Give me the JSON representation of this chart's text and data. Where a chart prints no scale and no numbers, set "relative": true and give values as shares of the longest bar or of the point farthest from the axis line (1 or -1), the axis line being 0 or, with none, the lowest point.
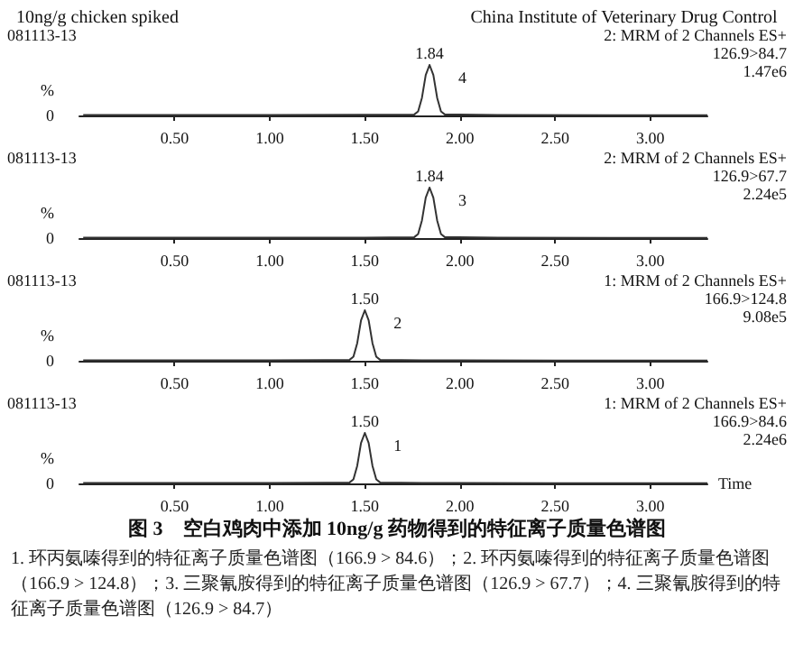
{
  "chart_data": [
    {
      "type": "line",
      "relative": true,
      "title": "10ng/g chicken spiked",
      "subtitle": "China Institute of Veterinary Drug Control",
      "ylabel": "%",
      "xlim": [
        0,
        3.3
      ],
      "xticks": [
        {
          "value": 0.5,
          "label": "0.50"
        },
        {
          "value": 1,
          "label": "1.00"
        },
        {
          "value": 1.5,
          "label": "1.50"
        },
        {
          "value": 2,
          "label": "2.00"
        },
        {
          "value": 2.5,
          "label": "2.50"
        },
        {
          "value": 3,
          "label": "3.00"
        }
      ],
      "series": [
        {
          "color": "#333333",
          "x": [
            0.02,
            0.5,
            1.0,
            1.5,
            1.76,
            1.78,
            1.8,
            1.82,
            1.84,
            1.86,
            1.88,
            1.9,
            1.92,
            2.2,
            2.8,
            3.3
          ],
          "values": [
            0.01,
            0.01,
            0.01,
            0.015,
            0.02,
            0.08,
            0.35,
            0.8,
            1,
            0.8,
            0.35,
            0.08,
            0.02,
            0.01,
            0.005,
            0.005
          ]
        }
      ],
      "annotations": [
        "081113-13",
        "2: MRM of 2 Channels ES+",
        "126.9>84.7",
        "1.47e6",
        "0",
        "1.84",
        "4"
      ]
    },
    {
      "type": "line",
      "relative": true,
      "ylabel": "%",
      "xlim": [
        0,
        3.3
      ],
      "xticks": [
        {
          "value": 0.5,
          "label": "0.50"
        },
        {
          "value": 1,
          "label": "1.00"
        },
        {
          "value": 1.5,
          "label": "1.50"
        },
        {
          "value": 2,
          "label": "2.00"
        },
        {
          "value": 2.5,
          "label": "2.50"
        },
        {
          "value": 3,
          "label": "3.00"
        }
      ],
      "series": [
        {
          "color": "#333333",
          "x": [
            0.02,
            0.5,
            1.0,
            1.5,
            1.76,
            1.78,
            1.8,
            1.82,
            1.84,
            1.86,
            1.88,
            1.9,
            1.92,
            2.2,
            2.8,
            3.3
          ],
          "values": [
            0.01,
            0.01,
            0.01,
            0.01,
            0.02,
            0.08,
            0.35,
            0.8,
            1,
            0.8,
            0.35,
            0.08,
            0.02,
            0.01,
            0.005,
            0.005
          ]
        }
      ],
      "annotations": [
        "081113-13",
        "2: MRM of 2 Channels ES+",
        "126.9>67.7",
        "2.24e5",
        "0",
        "1.84",
        "3"
      ]
    },
    {
      "type": "line",
      "relative": true,
      "ylabel": "%",
      "xlim": [
        0,
        3.3
      ],
      "xticks": [
        {
          "value": 0.5,
          "label": "0.50"
        },
        {
          "value": 1,
          "label": "1.00"
        },
        {
          "value": 1.5,
          "label": "1.50"
        },
        {
          "value": 2,
          "label": "2.00"
        },
        {
          "value": 2.5,
          "label": "2.50"
        },
        {
          "value": 3,
          "label": "3.00"
        }
      ],
      "series": [
        {
          "color": "#333333",
          "x": [
            0.02,
            0.5,
            1.0,
            1.3,
            1.42,
            1.44,
            1.46,
            1.48,
            1.5,
            1.52,
            1.54,
            1.56,
            1.58,
            1.8,
            2.5,
            3.3
          ],
          "values": [
            0.01,
            0.01,
            0.01,
            0.015,
            0.02,
            0.08,
            0.35,
            0.8,
            1,
            0.8,
            0.35,
            0.08,
            0.02,
            0.01,
            0.005,
            0.005
          ]
        }
      ],
      "annotations": [
        "081113-13",
        "1: MRM of 2 Channels ES+",
        "166.9>124.8",
        "9.08e5",
        "0",
        "1.50",
        "2"
      ]
    },
    {
      "type": "line",
      "relative": true,
      "ylabel": "%",
      "xlabel": "Time",
      "xlim": [
        0,
        3.3
      ],
      "xticks": [
        {
          "value": 0.5,
          "label": "0.50"
        },
        {
          "value": 1,
          "label": "1.00"
        },
        {
          "value": 1.5,
          "label": "1.50"
        },
        {
          "value": 2,
          "label": "2.00"
        },
        {
          "value": 2.5,
          "label": "2.50"
        },
        {
          "value": 3,
          "label": "3.00"
        }
      ],
      "series": [
        {
          "color": "#333333",
          "x": [
            0.02,
            0.5,
            1.0,
            1.3,
            1.42,
            1.44,
            1.46,
            1.48,
            1.5,
            1.52,
            1.54,
            1.56,
            1.58,
            1.8,
            2.5,
            3.3
          ],
          "values": [
            0.01,
            0.01,
            0.01,
            0.015,
            0.02,
            0.08,
            0.35,
            0.8,
            1,
            0.8,
            0.35,
            0.08,
            0.02,
            0.01,
            0.005,
            0.005
          ]
        }
      ],
      "annotations": [
        "081113-13",
        "1: MRM of 2 Channels ES+",
        "166.9>84.6",
        "2.24e6",
        "0",
        "1.50",
        "1",
        "图 3　空白鸡肉中添加 10ng/g 药物得到的特征离子质量色谱图",
        "1. 环丙氨嗪得到的特征离子质量色谱图（166.9 > 84.6）；2. 环丙氨嗪得到的特征离子质量色谱图（166.9 > 124.8）；3. 三聚氰胺得到的特征离子质量色谱图（126.9 > 67.7）；4. 三聚氰胺得到的特征离子质量色谱图（126.9 > 84.7）"
      ]
    }
  ]
}
